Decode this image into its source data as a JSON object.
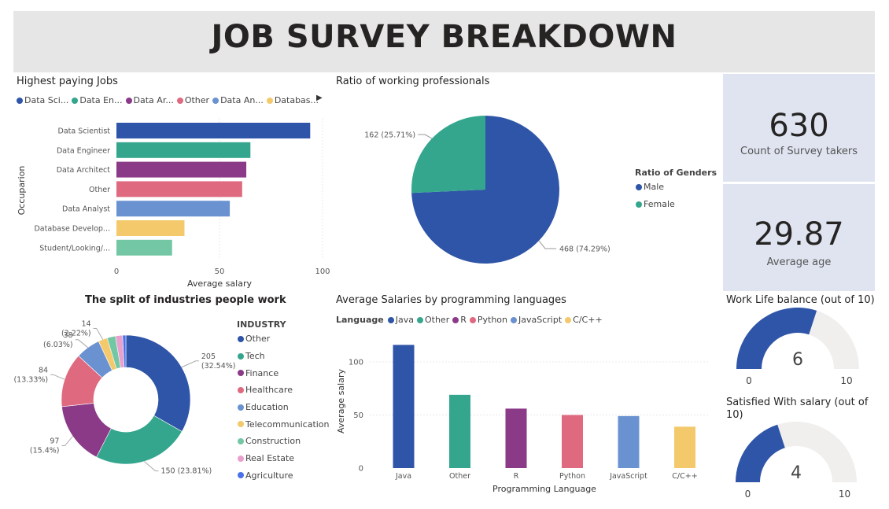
{
  "page": {
    "title": "JOB SURVEY BREAKDOWN"
  },
  "colors": {
    "blue": "#2f55a8",
    "teal": "#35a68e",
    "purple": "#8a3a87",
    "red": "#df6a80",
    "lightblue": "#6b92d0",
    "yellow": "#f4c96b",
    "mint": "#73c7a4",
    "pink": "#e9a0cd",
    "agri": "#4a72e8",
    "track": "#f0efee",
    "card_bg": "#dfe4f0"
  },
  "jobs_panel": {
    "title": "Highest paying Jobs",
    "legend": [
      "Data Sci...",
      "Data En...",
      "Data Ar...",
      "Other",
      "Data An...",
      "Databas..."
    ],
    "legend_more_icon": "chevron-right-icon"
  },
  "gender_panel": {
    "title": "Ratio of working professionals",
    "legend_title": "Ratio of Genders",
    "legend": [
      "Male",
      "Female"
    ]
  },
  "kpis": {
    "count": {
      "value": "630",
      "label": "Count of Survey takers"
    },
    "age": {
      "value": "29.87",
      "label": "Average age"
    }
  },
  "industry_panel": {
    "title": "The split of industries people work",
    "legend_title": "INDUSTRY"
  },
  "language_panel": {
    "title": "Average Salaries by programming languages",
    "legend_title": "Language"
  },
  "gauges": [
    {
      "title": "Work Life balance (out of 10)",
      "value": 6,
      "min": 0,
      "max": 10,
      "value_label": "6",
      "min_label": "0",
      "max_label": "10"
    },
    {
      "title": "Satisfied With salary (out of 10)",
      "value": 4,
      "min": 0,
      "max": 10,
      "value_label": "4",
      "min_label": "0",
      "max_label": "10"
    }
  ],
  "chart_data": [
    {
      "id": "jobs",
      "type": "bar",
      "orientation": "horizontal",
      "categories": [
        "Data Scientist",
        "Data Engineer",
        "Data Architect",
        "Other",
        "Data Analyst",
        "Database Develop...",
        "Student/Looking/..."
      ],
      "values": [
        94,
        65,
        63,
        61,
        55,
        33,
        27
      ],
      "colors": [
        "#2f55a8",
        "#35a68e",
        "#8a3a87",
        "#df6a80",
        "#6b92d0",
        "#f4c96b",
        "#73c7a4"
      ],
      "xlabel": "Average salary",
      "ylabel": "Occuparion",
      "xlim": [
        0,
        100
      ],
      "xticks": [
        "0",
        "50",
        "100"
      ]
    },
    {
      "id": "gender",
      "type": "pie",
      "slices": [
        {
          "name": "Male",
          "value": 468,
          "label": "468 (74.29%)",
          "color": "#2f55a8"
        },
        {
          "name": "Female",
          "value": 162,
          "label": "162 (25.71%)",
          "color": "#35a68e"
        }
      ],
      "legend_title": "Ratio of Genders"
    },
    {
      "id": "industry",
      "type": "pie",
      "donut": true,
      "slices": [
        {
          "name": "Other",
          "value": 205,
          "label_lines": [
            "205",
            "(32.54%)"
          ],
          "color": "#2f55a8"
        },
        {
          "name": "Tech",
          "value": 150,
          "label_lines": [
            "150 (23.81%)"
          ],
          "color": "#35a68e"
        },
        {
          "name": "Finance",
          "value": 97,
          "label_lines": [
            "97",
            "(15.4%)"
          ],
          "color": "#8a3a87"
        },
        {
          "name": "Healthcare",
          "value": 84,
          "label_lines": [
            "84",
            "(13.33%)"
          ],
          "color": "#df6a80"
        },
        {
          "name": "Education",
          "value": 38,
          "label_lines": [
            "38",
            "(6.03%)"
          ],
          "color": "#6b92d0"
        },
        {
          "name": "Telecommunication",
          "value": 14,
          "label_lines": [
            "14",
            "(2.22%)"
          ],
          "color": "#f4c96b"
        },
        {
          "name": "Construction",
          "value": 13,
          "label_lines": [],
          "color": "#73c7a4"
        },
        {
          "name": "Real Estate",
          "value": 11,
          "label_lines": [],
          "color": "#e9a0cd"
        },
        {
          "name": "Agriculture",
          "value": 5,
          "label_lines": [],
          "color": "#4a72e8"
        }
      ],
      "legend_title": "INDUSTRY"
    },
    {
      "id": "languages",
      "type": "bar",
      "categories": [
        "Java",
        "Other",
        "R",
        "Python",
        "JavaScript",
        "C/C++"
      ],
      "values": [
        116,
        69,
        56,
        50,
        49,
        39
      ],
      "colors": [
        "#2f55a8",
        "#35a68e",
        "#8a3a87",
        "#df6a80",
        "#6b92d0",
        "#f4c96b"
      ],
      "xlabel": "Programming Language",
      "ylabel": "Average salary",
      "ylim": [
        0,
        120
      ],
      "yticks": [
        0,
        50,
        100
      ],
      "legend_title": "Language"
    }
  ]
}
